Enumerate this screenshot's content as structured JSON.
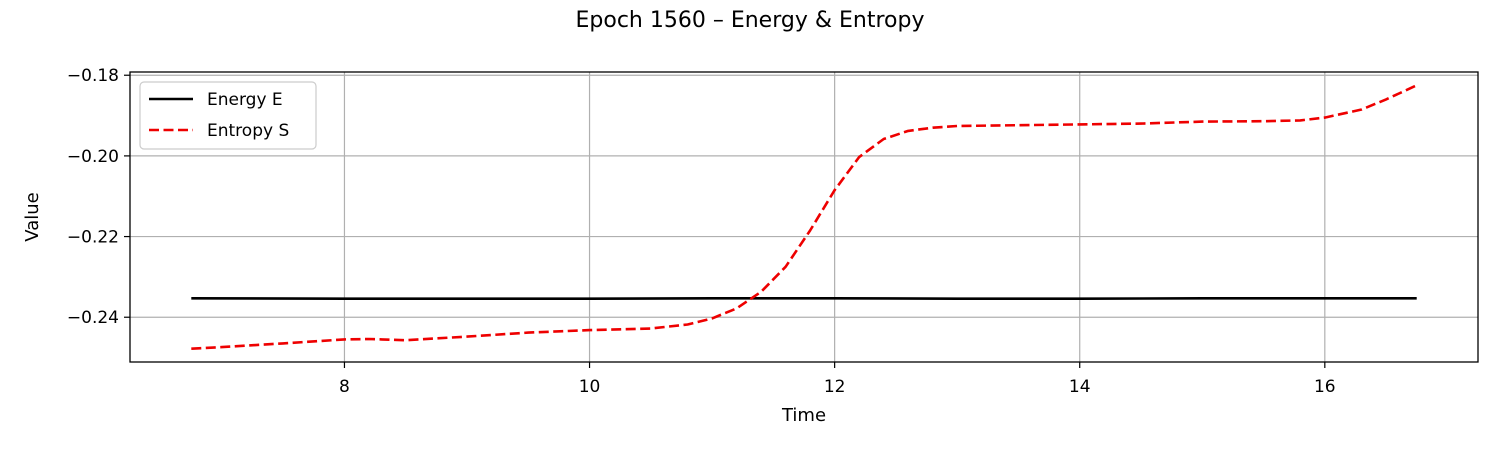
{
  "chart_data": {
    "type": "line",
    "title": "Epoch 1560 – Energy & Entropy",
    "xlabel": "Time",
    "ylabel": "Value",
    "xlim": [
      6.25,
      17.25
    ],
    "ylim": [
      -0.2511,
      -0.1792
    ],
    "xticks": [
      8,
      10,
      12,
      14,
      16
    ],
    "xtick_labels": [
      "8",
      "10",
      "12",
      "14",
      "16"
    ],
    "yticks": [
      -0.24,
      -0.22,
      -0.2,
      -0.18
    ],
    "ytick_labels": [
      "−0.24",
      "−0.22",
      "−0.20",
      "−0.18"
    ],
    "grid": true,
    "legend_position": "upper-left",
    "series": [
      {
        "name": "Energy E",
        "color": "#000000",
        "style": "solid",
        "x": [
          6.75,
          8.0,
          9.0,
          10.0,
          11.0,
          12.0,
          13.0,
          14.0,
          15.0,
          16.0,
          16.75
        ],
        "y": [
          -0.2353,
          -0.2354,
          -0.2354,
          -0.2354,
          -0.2353,
          -0.2353,
          -0.2354,
          -0.2354,
          -0.2353,
          -0.2353,
          -0.2353
        ]
      },
      {
        "name": "Entropy S",
        "color": "#ee0000",
        "style": "dashed",
        "x": [
          6.75,
          7.0,
          7.5,
          8.0,
          8.2,
          8.5,
          9.0,
          9.5,
          10.0,
          10.5,
          10.8,
          11.0,
          11.2,
          11.4,
          11.6,
          11.8,
          12.0,
          12.2,
          12.4,
          12.6,
          12.8,
          13.0,
          13.5,
          14.0,
          14.5,
          15.0,
          15.5,
          15.8,
          16.0,
          16.3,
          16.5,
          16.75
        ],
        "y": [
          -0.2478,
          -0.2474,
          -0.2465,
          -0.2455,
          -0.2454,
          -0.2457,
          -0.2448,
          -0.2438,
          -0.2432,
          -0.2428,
          -0.2418,
          -0.2403,
          -0.2378,
          -0.2337,
          -0.2275,
          -0.2185,
          -0.2085,
          -0.2003,
          -0.1958,
          -0.1938,
          -0.193,
          -0.1926,
          -0.1924,
          -0.1922,
          -0.192,
          -0.1915,
          -0.1914,
          -0.1912,
          -0.1905,
          -0.1885,
          -0.186,
          -0.1825
        ]
      }
    ]
  }
}
